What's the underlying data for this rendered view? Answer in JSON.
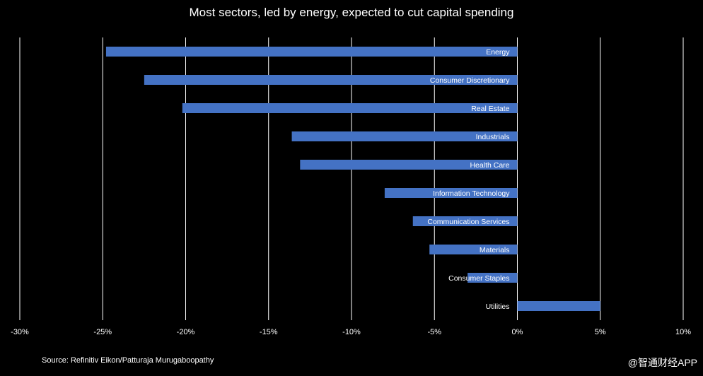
{
  "chart_data": {
    "type": "bar",
    "orientation": "horizontal",
    "title": "Most sectors, led by energy, expected to cut capital spending",
    "categories": [
      "Energy",
      "Consumer Discretionary",
      "Real Estate",
      "Industrials",
      "Health Care",
      "Information Technology",
      "Communication Services",
      "Materials",
      "Consumer Staples",
      "Utilities"
    ],
    "values": [
      -24.8,
      -22.5,
      -20.2,
      -13.6,
      -13.1,
      -8.0,
      -6.3,
      -5.3,
      -3.0,
      5.0
    ],
    "xlim": [
      -30,
      10
    ],
    "xticks": [
      -30,
      -25,
      -20,
      -15,
      -10,
      -5,
      0,
      5,
      10
    ],
    "xtick_labels": [
      "-30%",
      "-25%",
      "-20%",
      "-15%",
      "-10%",
      "-5%",
      "0%",
      "5%",
      "10%"
    ],
    "grid": true,
    "bar_color": "#4472C4",
    "grid_color": "#FFFFFF",
    "label_color": "#FFFFFF"
  },
  "footer": {
    "source": "Source: Refinitiv Eikon/Patturaja Murugaboopathy",
    "watermark": "@智通财经APP"
  }
}
